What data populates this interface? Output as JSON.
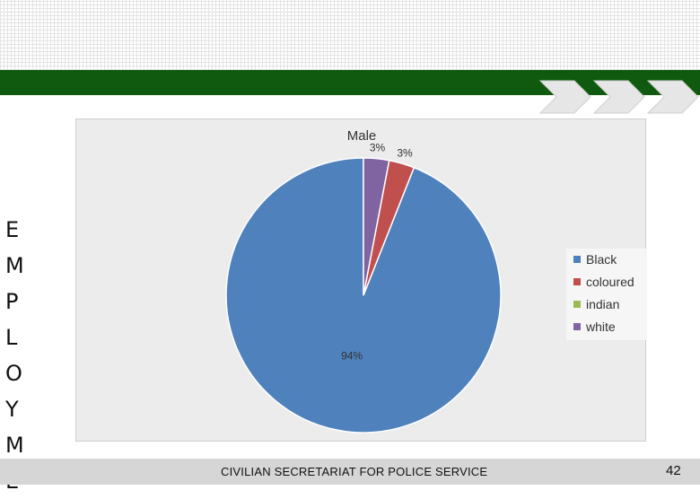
{
  "side_word": [
    "E",
    "M",
    "P",
    "L",
    "O",
    "Y",
    "M",
    "E"
  ],
  "footer": {
    "organization": "CIVILIAN SECRETARIAT FOR POLICE SERVICE",
    "page_number": "42"
  },
  "colors": {
    "green_band": "#0f5a0f",
    "chevron": "#e6e6e6"
  },
  "chart_data": {
    "type": "pie",
    "title": "Male",
    "categories": [
      "Black",
      "coloured",
      "indian",
      "white"
    ],
    "values": [
      94,
      3,
      0,
      3
    ],
    "data_labels": [
      "94%",
      "3%",
      "",
      "3%"
    ],
    "colors": [
      "#4f81bd",
      "#c0504d",
      "#9bbb59",
      "#8064a2"
    ],
    "legend_position": "right",
    "start_angle_deg": 0,
    "direction": "counterclockwise"
  }
}
